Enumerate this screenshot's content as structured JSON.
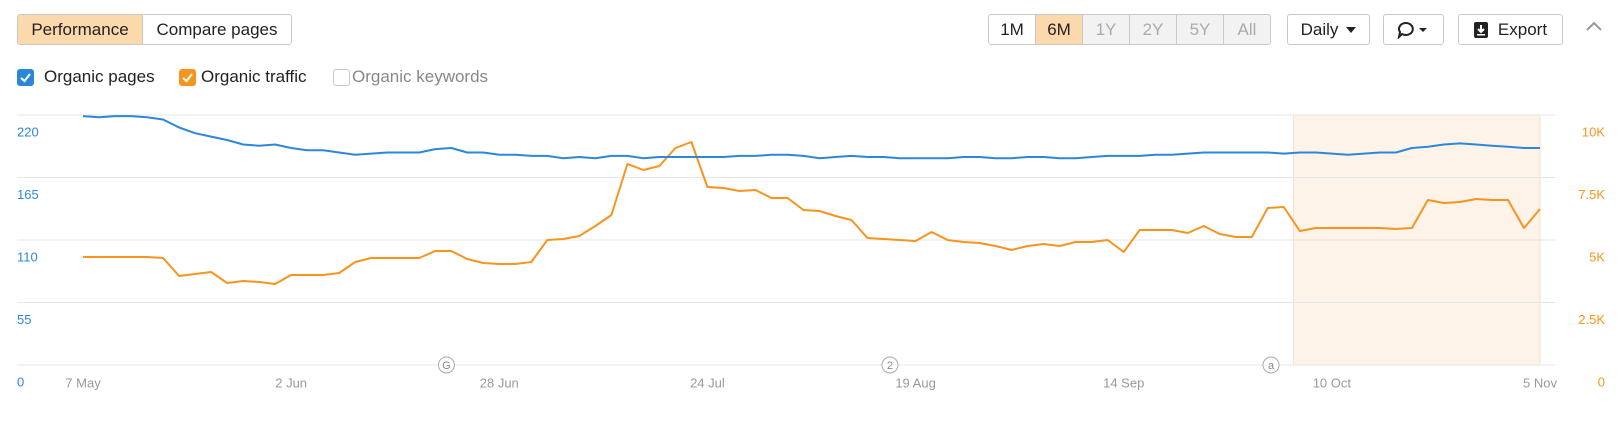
{
  "toolbar": {
    "tabs": [
      "Performance",
      "Compare pages"
    ],
    "active_tab": 0,
    "ranges": [
      "1M",
      "6M",
      "1Y",
      "2Y",
      "5Y",
      "All"
    ],
    "active_range": 1,
    "range_enabled": [
      true,
      true,
      false,
      false,
      false,
      false
    ],
    "interval": "Daily",
    "export": "Export"
  },
  "chart_data": {
    "type": "line",
    "categories": [
      "7 May",
      null,
      null,
      null,
      null,
      null,
      null,
      null,
      null,
      null,
      null,
      null,
      null,
      "2 Jun",
      null,
      null,
      null,
      null,
      null,
      null,
      null,
      null,
      null,
      null,
      null,
      null,
      "28 Jun",
      null,
      null,
      null,
      null,
      null,
      null,
      null,
      null,
      null,
      null,
      null,
      null,
      "24 Jul",
      null,
      null,
      null,
      null,
      null,
      null,
      null,
      null,
      null,
      null,
      null,
      null,
      "19 Aug",
      null,
      null,
      null,
      null,
      null,
      null,
      null,
      null,
      null,
      null,
      null,
      null,
      "14 Sep",
      null,
      null,
      null,
      null,
      null,
      null,
      null,
      null,
      null,
      null,
      null,
      null,
      "10 Oct",
      null,
      null,
      null,
      null,
      null,
      null,
      null,
      null,
      null,
      null,
      null,
      null,
      "5 Nov"
    ],
    "series": [
      {
        "name": "Organic pages",
        "color": "#2d87d9",
        "axis": "y",
        "checked": true,
        "values": [
          219,
          218,
          219,
          219,
          218,
          216,
          209,
          204,
          201,
          198,
          194,
          193,
          194,
          191,
          189,
          189,
          187,
          185,
          186,
          187,
          187,
          187,
          190,
          191,
          187,
          187,
          185,
          185,
          184,
          184,
          182,
          183,
          182,
          184,
          184,
          182,
          183,
          183,
          183,
          183,
          183,
          184,
          184,
          185,
          185,
          184,
          182,
          183,
          184,
          183,
          183,
          182,
          182,
          182,
          182,
          183,
          183,
          182,
          182,
          183,
          183,
          182,
          182,
          183,
          184,
          184,
          184,
          185,
          185,
          186,
          187,
          187,
          187,
          187,
          187,
          186,
          187,
          187,
          186,
          185,
          186,
          187,
          187,
          191,
          192,
          194,
          195,
          194,
          193,
          192,
          191,
          191
        ]
      },
      {
        "name": "Organic traffic",
        "color": "#f7941d",
        "axis": "y2",
        "checked": true,
        "values": [
          4320,
          4320,
          4320,
          4320,
          4320,
          4280,
          3560,
          3640,
          3720,
          3280,
          3360,
          3320,
          3240,
          3600,
          3600,
          3600,
          3680,
          4120,
          4280,
          4280,
          4280,
          4280,
          4560,
          4560,
          4240,
          4080,
          4040,
          4040,
          4120,
          5000,
          5040,
          5160,
          5560,
          6000,
          8040,
          7800,
          7960,
          8680,
          8920,
          7120,
          7080,
          6960,
          7000,
          6680,
          6680,
          6200,
          6160,
          5960,
          5800,
          5080,
          5040,
          5000,
          4960,
          5320,
          5000,
          4920,
          4880,
          4760,
          4600,
          4760,
          4840,
          4760,
          4920,
          4920,
          5000,
          4520,
          5400,
          5400,
          5400,
          5280,
          5560,
          5240,
          5120,
          5120,
          6280,
          6320,
          5360,
          5480,
          5480,
          5480,
          5480,
          5480,
          5440,
          5480,
          6600,
          6480,
          6520,
          6640,
          6600,
          6600,
          5480,
          6240
        ]
      }
    ],
    "hidden_series": [
      "Organic keywords"
    ],
    "ylim": [
      0,
      220
    ],
    "yticks": [
      0,
      55,
      110,
      165,
      220
    ],
    "y2lim": [
      0,
      10000
    ],
    "y2ticks": [
      0,
      {
        "value": 2500,
        "label": "2.5K"
      },
      {
        "value": 5000,
        "label": "5K"
      },
      {
        "value": 7500,
        "label": "7.5K"
      },
      {
        "value": 10000,
        "label": "10K"
      }
    ],
    "grid": true,
    "annotations": [
      {
        "label": "G",
        "at": 22.7
      },
      {
        "label": "2",
        "at": 50.4
      },
      {
        "label": "a",
        "at": 74.2
      }
    ],
    "highlight": {
      "from": 75.6,
      "to": 91,
      "color": "#fdf3e8"
    }
  }
}
